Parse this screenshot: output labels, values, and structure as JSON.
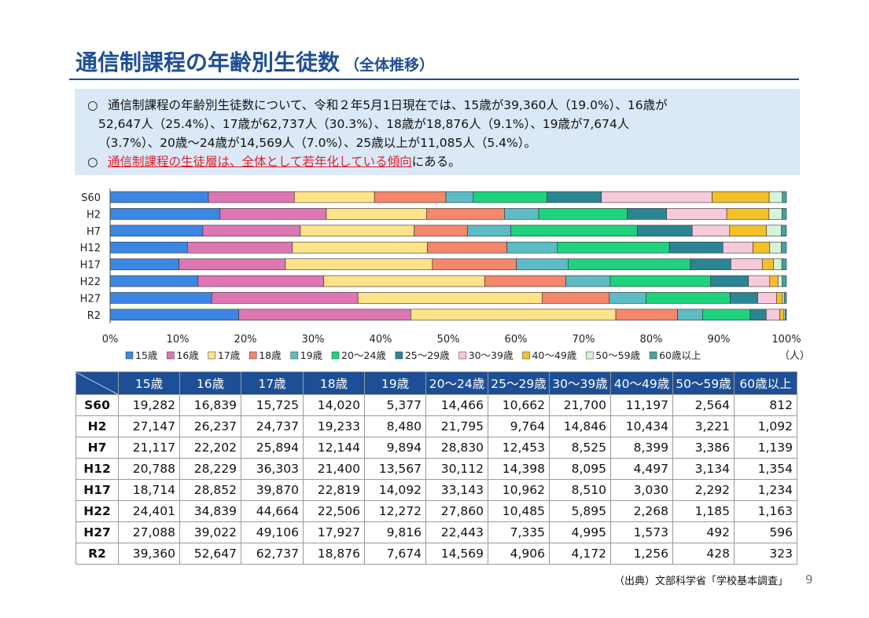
{
  "title": "通信制課程の年齢別生徒数",
  "subtitle": "（全体推移）",
  "summary": {
    "bullet": "○",
    "line1": "通信制課程の年齢別生徒数について、令和２年5月1日現在では、15歳が39,360人（19.0%）、16歳が",
    "line2": "52,647人（25.4%）、17歳が62,737人（30.3%）、18歳が18,876人（9.1%）、19歳が7,674人",
    "line3": "（3.7%）、20歳～24歳が14,569人（7.0%）、25歳以上が11,085人（5.4%）。",
    "line4_highlight": "通信制課程の生徒層は、全体として若年化している傾向",
    "line4_tail": "にある。"
  },
  "chart_data": {
    "type": "bar",
    "orientation": "horizontal",
    "stacked": "percent",
    "categories": [
      "S60",
      "H2",
      "H7",
      "H12",
      "H17",
      "H22",
      "H27",
      "R2"
    ],
    "series": [
      {
        "name": "15歳",
        "color": "#3c87e3",
        "values": [
          19282,
          27147,
          21117,
          20788,
          18714,
          24401,
          27088,
          39360
        ]
      },
      {
        "name": "16歳",
        "color": "#dd77b2",
        "values": [
          16839,
          26237,
          22202,
          28229,
          28852,
          34839,
          39022,
          52647
        ]
      },
      {
        "name": "17歳",
        "color": "#fde38a",
        "values": [
          15725,
          24737,
          25894,
          36303,
          39870,
          44664,
          49106,
          62737
        ]
      },
      {
        "name": "18歳",
        "color": "#f4876c",
        "values": [
          14020,
          19233,
          12144,
          21400,
          22819,
          22506,
          17927,
          18876
        ]
      },
      {
        "name": "19歳",
        "color": "#5dbbc6",
        "values": [
          5377,
          8480,
          9894,
          13567,
          14092,
          12272,
          9816,
          7674
        ]
      },
      {
        "name": "20～24歳",
        "color": "#1fd27d",
        "values": [
          14466,
          21795,
          28830,
          30112,
          33143,
          27860,
          22443,
          14569
        ]
      },
      {
        "name": "25～29歳",
        "color": "#2b8593",
        "values": [
          10662,
          9764,
          12453,
          14398,
          10962,
          10485,
          7335,
          4906
        ]
      },
      {
        "name": "30～39歳",
        "color": "#f6c9db",
        "values": [
          21700,
          14846,
          8525,
          8095,
          8510,
          5895,
          4995,
          4172
        ]
      },
      {
        "name": "40～49歳",
        "color": "#f3c02a",
        "values": [
          11197,
          10434,
          8399,
          4497,
          3030,
          2268,
          1573,
          1256
        ]
      },
      {
        "name": "50～59歳",
        "color": "#d3f4d8",
        "values": [
          2564,
          3221,
          3386,
          3134,
          2292,
          1185,
          492,
          428
        ]
      },
      {
        "name": "60歳以上",
        "color": "#4aa0a4",
        "values": [
          812,
          1092,
          1139,
          1354,
          1234,
          1163,
          596,
          323
        ]
      }
    ],
    "xticks": [
      "0%",
      "10%",
      "20%",
      "30%",
      "40%",
      "50%",
      "60%",
      "70%",
      "80%",
      "90%",
      "100%"
    ],
    "xlim": [
      0,
      100
    ],
    "grid": false,
    "legend": "bottom",
    "unit": "（人）"
  },
  "source": "（出典）文部科学省「学校基本調査」",
  "page_number": "9"
}
